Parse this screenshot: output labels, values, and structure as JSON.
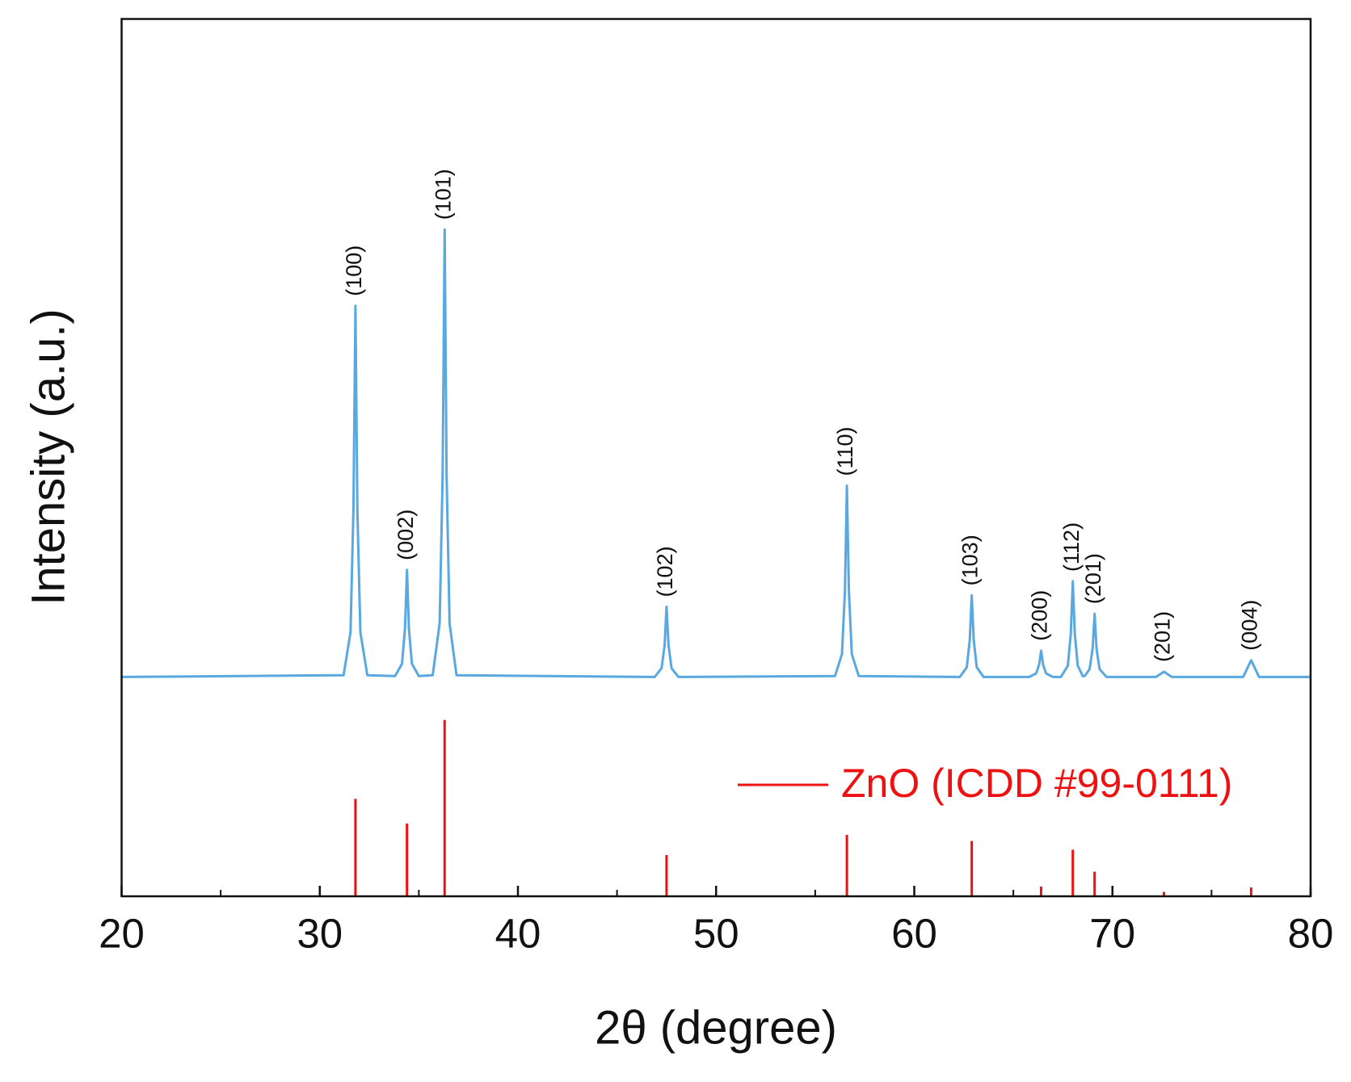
{
  "chart_data": {
    "type": "xrd",
    "x_label": "2θ (degree)",
    "y_label": "Intensity (a.u.)",
    "xlim": [
      20,
      80
    ],
    "xticks": [
      20,
      30,
      40,
      50,
      60,
      70,
      80
    ],
    "xminorticks": [
      25,
      35,
      45,
      55,
      65,
      75
    ],
    "ylim": [
      0,
      100
    ],
    "legend": "right",
    "series": [
      {
        "type": "line",
        "color": "#5aa8e0",
        "x": [
          20,
          31.2,
          31.55,
          31.7,
          31.8,
          31.9,
          32.05,
          32.4,
          33.8,
          34.15,
          34.3,
          34.4,
          34.5,
          34.65,
          35.0,
          35.7,
          36.05,
          36.2,
          36.3,
          36.4,
          36.55,
          36.9,
          46.9,
          47.25,
          47.4,
          47.5,
          47.6,
          47.75,
          48.1,
          56.0,
          56.35,
          56.5,
          56.6,
          56.7,
          56.85,
          57.2,
          62.3,
          62.65,
          62.8,
          62.9,
          63.0,
          63.15,
          63.5,
          65.8,
          66.15,
          66.3,
          66.4,
          66.5,
          66.65,
          67.0,
          67.4,
          67.75,
          67.9,
          68.0,
          68.1,
          68.25,
          68.5,
          68.6,
          68.85,
          69.0,
          69.1,
          69.2,
          69.35,
          69.7,
          72.2,
          72.6,
          73.0,
          76.6,
          77.0,
          77.4,
          80
        ],
        "values": [
          25.0,
          25.2,
          30.1,
          44.0,
          67.3,
          44.0,
          30.1,
          25.2,
          25.1,
          26.5,
          30.5,
          37.2,
          30.5,
          26.5,
          25.1,
          25.2,
          31.1,
          48.0,
          76.0,
          48.0,
          31.1,
          25.2,
          25.0,
          26.0,
          28.6,
          33.0,
          28.6,
          26.0,
          25.0,
          25.1,
          27.6,
          34.8,
          46.8,
          34.8,
          27.6,
          25.1,
          25.0,
          26.1,
          29.2,
          34.3,
          29.2,
          26.1,
          25.0,
          25.0,
          25.4,
          26.4,
          28.0,
          26.4,
          25.4,
          25.0,
          25.0,
          26.3,
          29.9,
          35.9,
          29.9,
          26.3,
          25.1,
          25.1,
          25.9,
          28.2,
          32.2,
          28.2,
          25.9,
          25.0,
          25.0,
          25.6,
          25.0,
          25.0,
          26.9,
          25.0,
          25.0
        ]
      },
      {
        "type": "stick",
        "name": "ZnO (ICDD #99-0111)",
        "color": "#ee1111",
        "x": [
          31.8,
          34.4,
          36.3,
          47.5,
          56.6,
          62.9,
          66.4,
          68.0,
          69.1,
          72.6,
          77.0
        ],
        "values": [
          11.1,
          8.3,
          20.1,
          4.7,
          7.0,
          6.3,
          1.1,
          5.3,
          2.8,
          0.5,
          1.0
        ]
      }
    ],
    "annotations": [
      {
        "text": "(100)",
        "x": 31.8
      },
      {
        "text": "(002)",
        "x": 34.4
      },
      {
        "text": "(101)",
        "x": 36.3
      },
      {
        "text": "(102)",
        "x": 47.5
      },
      {
        "text": "(110)",
        "x": 56.6
      },
      {
        "text": "(103)",
        "x": 62.9
      },
      {
        "text": "(200)",
        "x": 66.4
      },
      {
        "text": "(112)",
        "x": 68.0
      },
      {
        "text": "(201)",
        "x": 69.1
      },
      {
        "text": "(201)",
        "x": 72.6
      },
      {
        "text": "(004)",
        "x": 77.0
      }
    ]
  }
}
